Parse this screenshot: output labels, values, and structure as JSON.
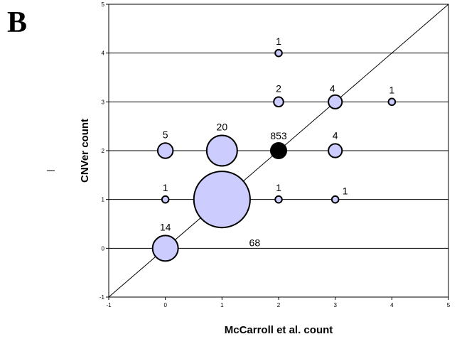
{
  "panel_label": "B",
  "chart_data": {
    "type": "scatter",
    "title": "",
    "xlabel": "McCarroll et al. count",
    "ylabel": "CNVer count",
    "xlim": [
      -1,
      5
    ],
    "ylim": [
      -1,
      5
    ],
    "xticks": [
      "-1",
      "0",
      "1",
      "2",
      "3",
      "4",
      "5"
    ],
    "yticks": [
      "-1",
      "0",
      "1",
      "2",
      "3",
      "4",
      "5"
    ],
    "grid": "horizontal",
    "diagonal": true,
    "bubble_color": "#ccccff",
    "highlight_color": "#000000",
    "points": [
      {
        "x": 2,
        "y": 4,
        "count": "1"
      },
      {
        "x": 2,
        "y": 3,
        "count": "2"
      },
      {
        "x": 3,
        "y": 3,
        "count": "4"
      },
      {
        "x": 4,
        "y": 3,
        "count": "1"
      },
      {
        "x": 0,
        "y": 2,
        "count": "5"
      },
      {
        "x": 1,
        "y": 2,
        "count": "20"
      },
      {
        "x": 2,
        "y": 2,
        "count": "853"
      },
      {
        "x": 3,
        "y": 2,
        "count": "4"
      },
      {
        "x": 0,
        "y": 1,
        "count": "1"
      },
      {
        "x": 1,
        "y": 1,
        "count": "68"
      },
      {
        "x": 2,
        "y": 1,
        "count": "1"
      },
      {
        "x": 3,
        "y": 1,
        "count": "1"
      },
      {
        "x": 0,
        "y": 0,
        "count": "14"
      }
    ]
  }
}
